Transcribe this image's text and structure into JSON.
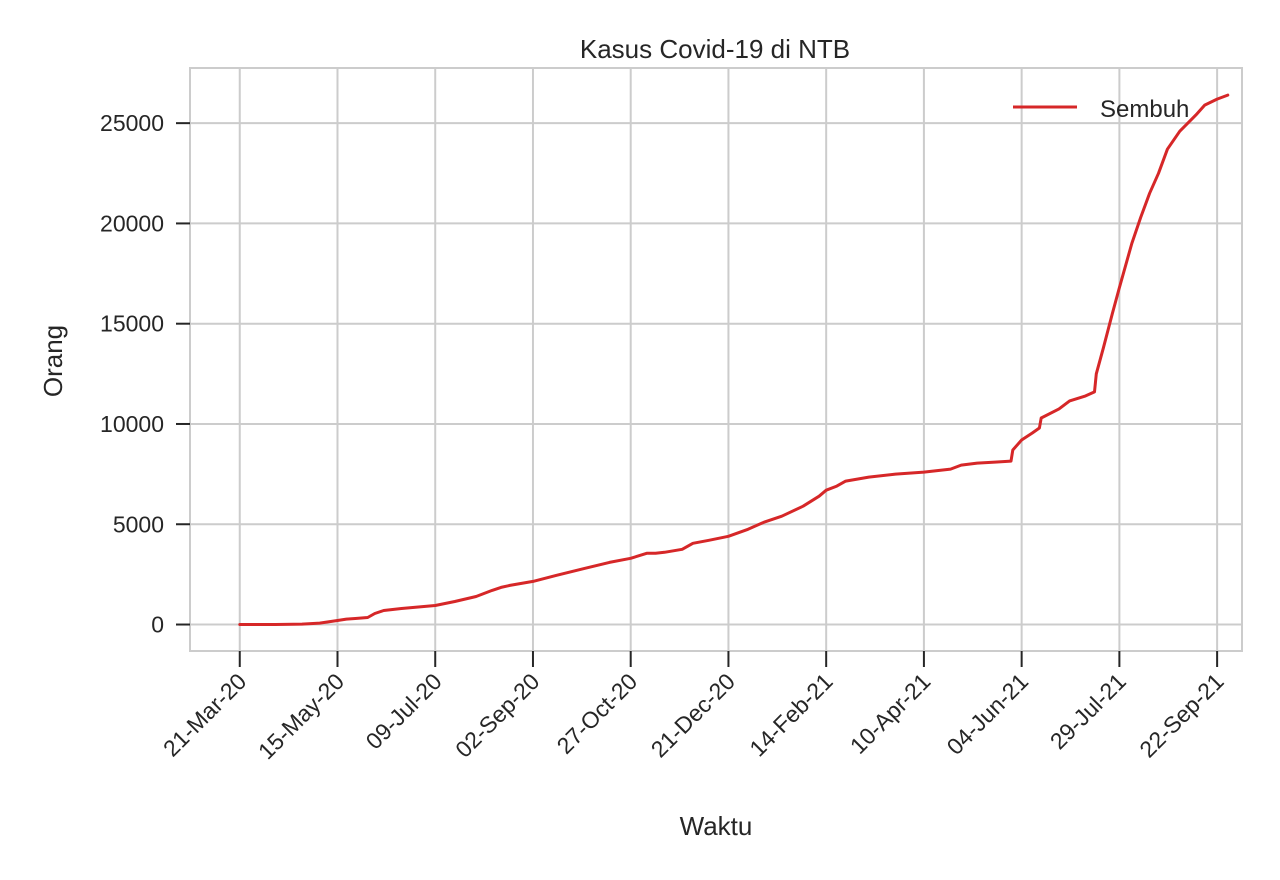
{
  "chart_data": {
    "type": "line",
    "title": "Kasus Covid-19 di NTB",
    "xlabel": "Waktu",
    "ylabel": "Orang",
    "x_tick_labels": [
      "21-Mar-20",
      "15-May-20",
      "09-Jul-20",
      "02-Sep-20",
      "27-Oct-20",
      "21-Dec-20",
      "14-Feb-21",
      "10-Apr-21",
      "04-Jun-21",
      "29-Jul-21",
      "22-Sep-21"
    ],
    "x_tick_dates": [
      "2020-03-21",
      "2020-05-15",
      "2020-07-09",
      "2020-09-02",
      "2020-10-27",
      "2020-12-21",
      "2021-02-14",
      "2021-04-10",
      "2021-06-04",
      "2021-07-29",
      "2021-09-22"
    ],
    "xlim": [
      "2020-02-22",
      "2021-10-06"
    ],
    "y_ticks": [
      0,
      5000,
      10000,
      15000,
      20000,
      25000
    ],
    "y_tick_labels": [
      "0",
      "5000",
      "10000",
      "15000",
      "20000",
      "25000"
    ],
    "ylim": [
      -1320,
      27750
    ],
    "grid": true,
    "legend_position": "top-right",
    "series": [
      {
        "name": "Sembuh",
        "color": "#d62728",
        "x": [
          "2020-03-21",
          "2020-04-10",
          "2020-04-25",
          "2020-05-05",
          "2020-05-15",
          "2020-05-20",
          "2020-05-25",
          "2020-06-01",
          "2020-06-05",
          "2020-06-10",
          "2020-06-20",
          "2020-07-09",
          "2020-07-20",
          "2020-08-01",
          "2020-08-10",
          "2020-08-15",
          "2020-08-20",
          "2020-09-02",
          "2020-09-15",
          "2020-10-01",
          "2020-10-15",
          "2020-10-27",
          "2020-11-05",
          "2020-11-10",
          "2020-11-15",
          "2020-11-25",
          "2020-12-01",
          "2020-12-10",
          "2020-12-21",
          "2021-01-01",
          "2021-01-10",
          "2021-01-20",
          "2021-02-01",
          "2021-02-10",
          "2021-02-14",
          "2021-02-20",
          "2021-02-25",
          "2021-03-10",
          "2021-03-25",
          "2021-04-10",
          "2021-04-25",
          "2021-05-01",
          "2021-05-10",
          "2021-05-20",
          "2021-05-29",
          "2021-05-30",
          "2021-06-04",
          "2021-06-10",
          "2021-06-14",
          "2021-06-15",
          "2021-06-25",
          "2021-07-01",
          "2021-07-10",
          "2021-07-15",
          "2021-07-16",
          "2021-07-20",
          "2021-07-25",
          "2021-07-29",
          "2021-08-05",
          "2021-08-10",
          "2021-08-15",
          "2021-08-20",
          "2021-08-25",
          "2021-09-01",
          "2021-09-10",
          "2021-09-15",
          "2021-09-22",
          "2021-09-28"
        ],
        "y": [
          0,
          0,
          20,
          70,
          200,
          270,
          300,
          350,
          550,
          700,
          800,
          950,
          1150,
          1400,
          1700,
          1850,
          1950,
          2150,
          2450,
          2800,
          3100,
          3300,
          3550,
          3550,
          3600,
          3750,
          4050,
          4200,
          4400,
          4750,
          5100,
          5400,
          5900,
          6400,
          6700,
          6900,
          7150,
          7350,
          7500,
          7600,
          7750,
          7950,
          8050,
          8100,
          8150,
          8700,
          9200,
          9550,
          9800,
          10300,
          10750,
          11150,
          11400,
          11600,
          12500,
          13800,
          15500,
          16800,
          19000,
          20300,
          21500,
          22500,
          23700,
          24600,
          25400,
          25900,
          26200,
          26400
        ]
      }
    ]
  }
}
